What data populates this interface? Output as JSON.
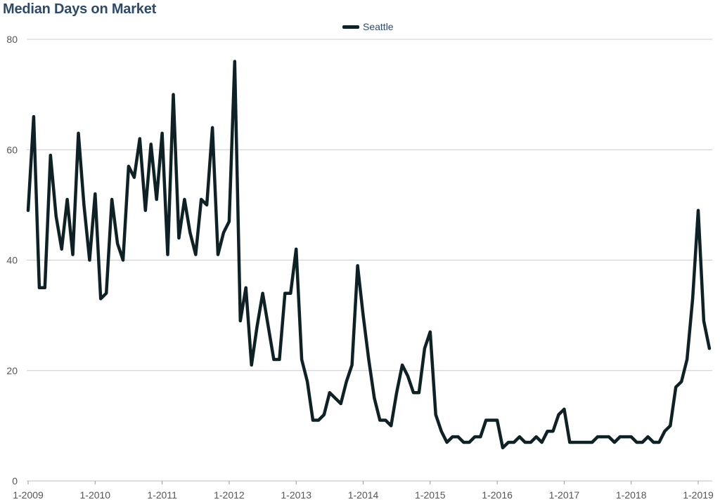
{
  "chart_data": {
    "type": "line",
    "title": "Median Days on Market",
    "xlabel": "",
    "ylabel": "",
    "ylim": [
      0,
      80
    ],
    "yticks": [
      0,
      20,
      40,
      60,
      80
    ],
    "xticks": [
      "1-2009",
      "1-2010",
      "1-2011",
      "1-2012",
      "1-2013",
      "1-2014",
      "1-2015",
      "1-2016",
      "1-2017",
      "1-2018",
      "1-2019"
    ],
    "x_start": "1-2009",
    "x_end": "3-2019",
    "grid": true,
    "legend_position": "top-center",
    "series": [
      {
        "name": "Seattle",
        "color": "#0e2226",
        "values": [
          49,
          66,
          35,
          35,
          59,
          48,
          42,
          51,
          41,
          63,
          50,
          40,
          52,
          33,
          34,
          51,
          43,
          40,
          57,
          55,
          62,
          49,
          61,
          51,
          63,
          41,
          70,
          44,
          51,
          45,
          41,
          51,
          50,
          64,
          41,
          45,
          47,
          76,
          29,
          35,
          21,
          28,
          34,
          28,
          22,
          22,
          34,
          34,
          42,
          22,
          18,
          11,
          11,
          12,
          16,
          15,
          14,
          18,
          21,
          39,
          30,
          22,
          15,
          11,
          11,
          10,
          16,
          21,
          19,
          16,
          16,
          24,
          27,
          12,
          9,
          7,
          8,
          8,
          7,
          7,
          8,
          8,
          11,
          11,
          11,
          6,
          7,
          7,
          8,
          7,
          7,
          8,
          7,
          9,
          9,
          12,
          13,
          7,
          7,
          7,
          7,
          7,
          8,
          8,
          8,
          7,
          8,
          8,
          8,
          7,
          7,
          8,
          7,
          7,
          9,
          10,
          17,
          18,
          22,
          33,
          49,
          29,
          24
        ]
      }
    ]
  }
}
